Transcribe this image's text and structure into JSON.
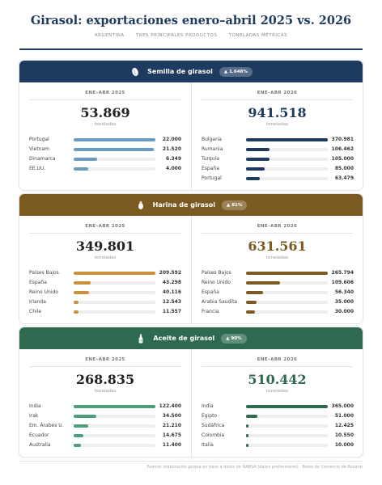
{
  "header": {
    "title": "Girasol: exportaciones enero–abril 2025 vs. 2026",
    "subtitle_parts": [
      "ARGENTINA",
      "TRES PRINCIPALES PRODUCTOS",
      "TONELADAS MÉTRICAS"
    ]
  },
  "labels": {
    "period_2025": "ENE–ABR 2025",
    "period_2026": "ENE–ABR 2026",
    "unit": "toneladas"
  },
  "source": "Fuente: elaboración propia en base a datos de NABSA (datos preliminares)  ·  Bolsa de Comercio de Rosario",
  "colors": {
    "header_rule": "#1e3a5f",
    "track": "#eeeeee"
  },
  "chart_data": [
    {
      "type": "bar",
      "product": "Semilla de girasol",
      "icon": "seed-icon",
      "change_badge": "▲ 1.648%",
      "head_color": "#1e3a5f",
      "bar_2025_color": "#6b9bbf",
      "bar_2026_color": "#1e3a5f",
      "total_2026_color": "#1e3a5f",
      "total_2025": "53.869",
      "total_2026": "941.518",
      "year_2025": {
        "categories": [
          "Portugal",
          "Vietnam",
          "Dinamarca",
          "EE.UU."
        ],
        "values": [
          22000,
          21520,
          6349,
          4000
        ],
        "labels": [
          "22.000",
          "21.520",
          "6.349",
          "4.000"
        ]
      },
      "year_2026": {
        "categories": [
          "Bulgaria",
          "Rumania",
          "Turquía",
          "España",
          "Portugal"
        ],
        "values": [
          370981,
          106462,
          105000,
          85000,
          63479
        ],
        "labels": [
          "370.981",
          "106.462",
          "105.000",
          "85.000",
          "63.479"
        ]
      }
    },
    {
      "type": "bar",
      "product": "Harina de girasol",
      "icon": "flour-sack-icon",
      "change_badge": "▲ 81%",
      "head_color": "#7a5a20",
      "bar_2025_color": "#c9923a",
      "bar_2026_color": "#7a5a20",
      "total_2026_color": "#7a5a20",
      "total_2025": "349.801",
      "total_2026": "631.561",
      "year_2025": {
        "categories": [
          "Países Bajos",
          "España",
          "Reino Unido",
          "Irlanda",
          "Chile"
        ],
        "values": [
          209592,
          43298,
          40116,
          12543,
          11557
        ],
        "labels": [
          "209.592",
          "43.298",
          "40.116",
          "12.543",
          "11.557"
        ]
      },
      "year_2026": {
        "categories": [
          "Países Bajos",
          "Reino Unido",
          "España",
          "Arabia Saudita",
          "Francia"
        ],
        "values": [
          265794,
          109606,
          56340,
          35000,
          30000
        ],
        "labels": [
          "265.794",
          "109.606",
          "56.340",
          "35.000",
          "30.000"
        ]
      }
    },
    {
      "type": "bar",
      "product": "Aceite de girasol",
      "icon": "oil-bottle-icon",
      "change_badge": "▲ 90%",
      "head_color": "#2d6a4f",
      "bar_2025_color": "#4a9e78",
      "bar_2026_color": "#2d6a4f",
      "total_2026_color": "#2d6a4f",
      "total_2025": "268.835",
      "total_2026": "510.442",
      "year_2025": {
        "categories": [
          "India",
          "Irak",
          "Em. Árabes U.",
          "Ecuador",
          "Australia"
        ],
        "values": [
          122400,
          34500,
          21210,
          14675,
          11400
        ],
        "labels": [
          "122.400",
          "34.500",
          "21.210",
          "14.675",
          "11.400"
        ]
      },
      "year_2026": {
        "categories": [
          "India",
          "Egipto",
          "Sudáfrica",
          "Colombia",
          "Italia"
        ],
        "values": [
          365000,
          51000,
          12425,
          10550,
          10000
        ],
        "labels": [
          "365.000",
          "51.000",
          "12.425",
          "10.550",
          "10.000"
        ]
      }
    }
  ]
}
